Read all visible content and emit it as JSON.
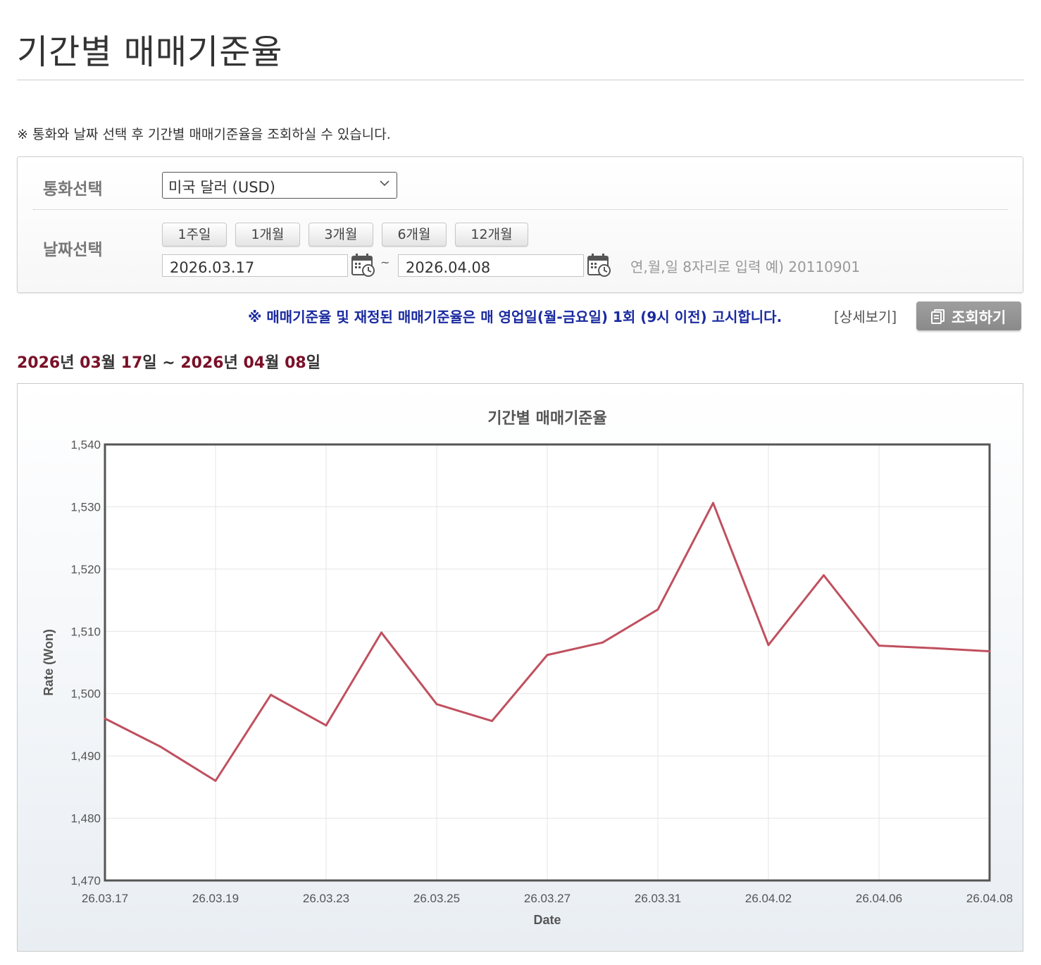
{
  "page": {
    "title": "기간별 매매기준율",
    "notice": "※ 통화와 날짜 선택 후 기간별 매매기준율을 조회하실 수 있습니다."
  },
  "search": {
    "currency_label": "통화선택",
    "currency_selected": "미국 달러 (USD)",
    "date_label": "날짜선택",
    "periods": [
      "1주일",
      "1개월",
      "3개월",
      "6개월",
      "12개월"
    ],
    "start_date": "2026.03.17",
    "end_date": "2026.04.08",
    "separator": "~",
    "date_hint": "연,월,일 8자리로 입력 예) 20110901"
  },
  "info": {
    "notice": "※ 매매기준율 및 재정된 매매기준율은 매 영업일(월-금요일) 1회 (9시 이전) 고시합니다.",
    "detail_link": "[상세보기]",
    "query_button": "조회하기"
  },
  "range": {
    "start_year": "2026",
    "start_month": "03",
    "start_day": "17",
    "end_year": "2026",
    "end_month": "04",
    "end_day": "08",
    "year_unit": "년",
    "month_unit": "월",
    "day_unit": "일",
    "separator": "~"
  },
  "colors": {
    "line": "#c0505f",
    "range_accent": "#7a1028",
    "notice_blue": "#1a2aa0"
  },
  "chart_data": {
    "type": "line",
    "title": "기간별 매매기준율",
    "xlabel": "Date",
    "ylabel": "Rate (Won)",
    "ylim": [
      1470,
      1540
    ],
    "yticks": [
      "1,540",
      "1,530",
      "1,520",
      "1,510",
      "1,500",
      "1,490",
      "1,480",
      "1,470"
    ],
    "xtick_labels": [
      "26.03.17",
      "26.03.19",
      "26.03.23",
      "26.03.25",
      "26.03.27",
      "26.03.31",
      "26.04.02",
      "26.04.06",
      "26.04.08"
    ],
    "grid": true,
    "series": [
      {
        "x": [
          "26.03.17",
          "26.03.18",
          "26.03.19",
          "26.03.20",
          "26.03.23",
          "26.03.24",
          "26.03.25",
          "26.03.26",
          "26.03.27",
          "26.03.30",
          "26.03.31",
          "26.04.01",
          "26.04.02",
          "26.04.03",
          "26.04.06",
          "26.04.07",
          "26.04.08"
        ],
        "values": [
          1496.0,
          1491.5,
          1486.0,
          1499.8,
          1494.9,
          1509.8,
          1498.3,
          1495.6,
          1506.2,
          1508.2,
          1513.5,
          1530.6,
          1507.8,
          1519.0,
          1507.7,
          1507.3,
          1506.8
        ]
      }
    ]
  }
}
